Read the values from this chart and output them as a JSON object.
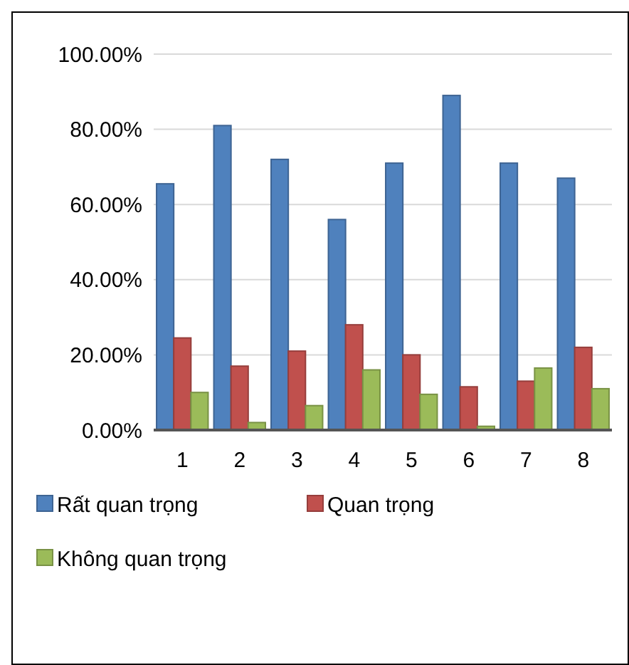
{
  "chart_data": {
    "type": "bar",
    "categories": [
      "1",
      "2",
      "3",
      "4",
      "5",
      "6",
      "7",
      "8"
    ],
    "series": [
      {
        "name": "Rất quan trọng",
        "color": "#4f81bd",
        "values": [
          65.5,
          81,
          72,
          56,
          71,
          89,
          71,
          67
        ]
      },
      {
        "name": "Quan trọng",
        "color": "#c0504d",
        "values": [
          24.5,
          17,
          21,
          28,
          20,
          11.5,
          13,
          22
        ]
      },
      {
        "name": "Không quan trọng",
        "color": "#9bbb59",
        "values": [
          10,
          2,
          6.5,
          16,
          9.5,
          1,
          16.5,
          11
        ]
      }
    ],
    "ylim": [
      0,
      100
    ],
    "yticks": [
      {
        "value": 0,
        "label": "0.00%"
      },
      {
        "value": 20,
        "label": "20.00%"
      },
      {
        "value": 40,
        "label": "40.00%"
      },
      {
        "value": 60,
        "label": "60.00%"
      },
      {
        "value": 80,
        "label": "80.00%"
      },
      {
        "value": 100,
        "label": "100.00%"
      }
    ],
    "grid": "y",
    "legend": "bottom"
  }
}
